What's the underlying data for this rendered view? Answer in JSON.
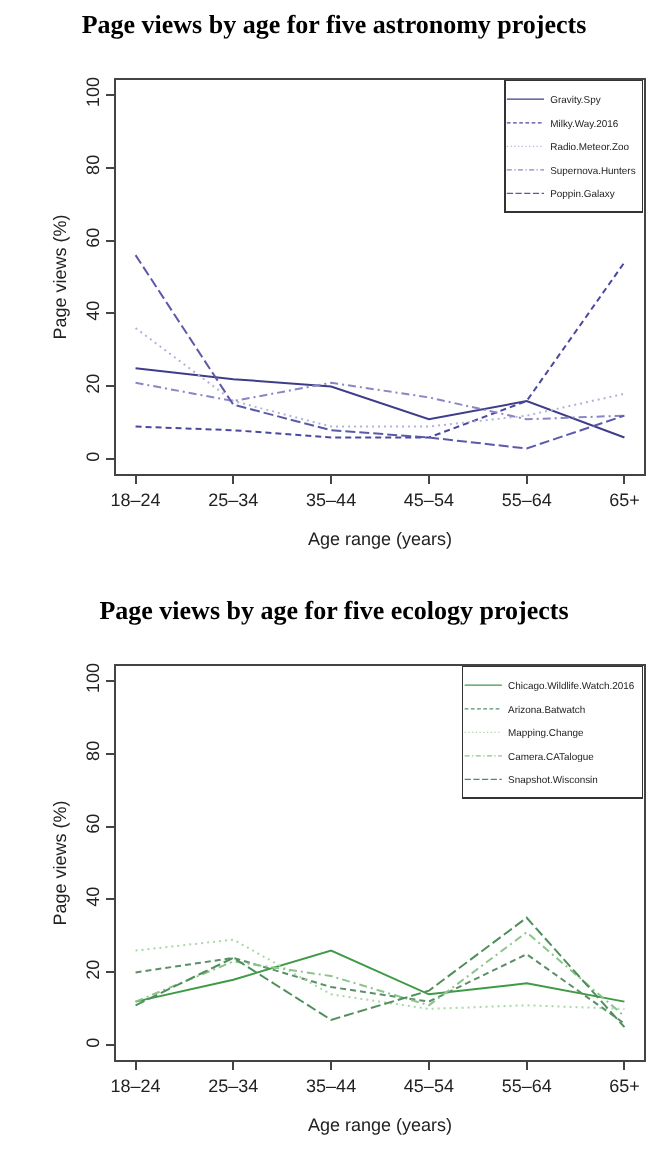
{
  "chart_data": [
    {
      "type": "line",
      "title": "Page views by age for five astronomy projects",
      "xlabel": "Age range (years)",
      "ylabel": "Page views (%)",
      "categories": [
        "18–24",
        "25–34",
        "35–44",
        "45–54",
        "55–64",
        "65+"
      ],
      "ylim": [
        -4,
        104
      ],
      "yticks": [
        0,
        20,
        40,
        60,
        80,
        100
      ],
      "grid": false,
      "legend": "top right",
      "marker": "none",
      "series": [
        {
          "name": "Gravity.Spy",
          "color": "#3f3d8a",
          "line_style": "solid",
          "values": [
            25,
            22,
            20,
            11,
            16,
            6
          ]
        },
        {
          "name": "Milky.Way.2016",
          "color": "#4a48a0",
          "line_style": "dashed",
          "values": [
            9,
            8,
            6,
            6,
            16,
            54
          ]
        },
        {
          "name": "Radio.Meteor.Zoo",
          "color": "#b3b2d8",
          "line_style": "dotted",
          "values": [
            36,
            16,
            9,
            9,
            12,
            18
          ]
        },
        {
          "name": "Supernova.Hunters",
          "color": "#8886c4",
          "line_style": "dashdot",
          "values": [
            21,
            16,
            21,
            17,
            11,
            12
          ]
        },
        {
          "name": "Poppin.Galaxy",
          "color": "#5b59a8",
          "line_style": "longdash",
          "values": [
            56,
            15,
            8,
            6,
            3,
            12
          ]
        }
      ]
    },
    {
      "type": "line",
      "title": "Page views by age for five ecology projects",
      "xlabel": "Age range (years)",
      "ylabel": "Page views (%)",
      "categories": [
        "18–24",
        "25–34",
        "35–44",
        "45–54",
        "55–64",
        "65+"
      ],
      "ylim": [
        -4,
        104
      ],
      "yticks": [
        0,
        20,
        40,
        60,
        80,
        100
      ],
      "grid": false,
      "legend": "top right",
      "marker": "none",
      "series": [
        {
          "name": "Chicago.Wildlife.Watch.2016",
          "color": "#3f9a45",
          "line_style": "solid",
          "values": [
            12,
            18,
            26,
            14,
            17,
            12
          ]
        },
        {
          "name": "Arizona.Batwatch",
          "color": "#5a8f6a",
          "line_style": "dashed",
          "values": [
            20,
            24,
            16,
            12,
            25,
            6
          ]
        },
        {
          "name": "Mapping.Change",
          "color": "#a8d8a8",
          "line_style": "dotted",
          "values": [
            26,
            29,
            14,
            10,
            11,
            10
          ]
        },
        {
          "name": "Camera.CATalogue",
          "color": "#8cc48c",
          "line_style": "dashdot",
          "values": [
            12,
            23,
            19,
            11,
            31,
            8
          ]
        },
        {
          "name": "Snapshot.Wisconsin",
          "color": "#4f8f5a",
          "line_style": "longdash",
          "values": [
            11,
            24,
            7,
            15,
            35,
            5
          ]
        }
      ]
    }
  ]
}
